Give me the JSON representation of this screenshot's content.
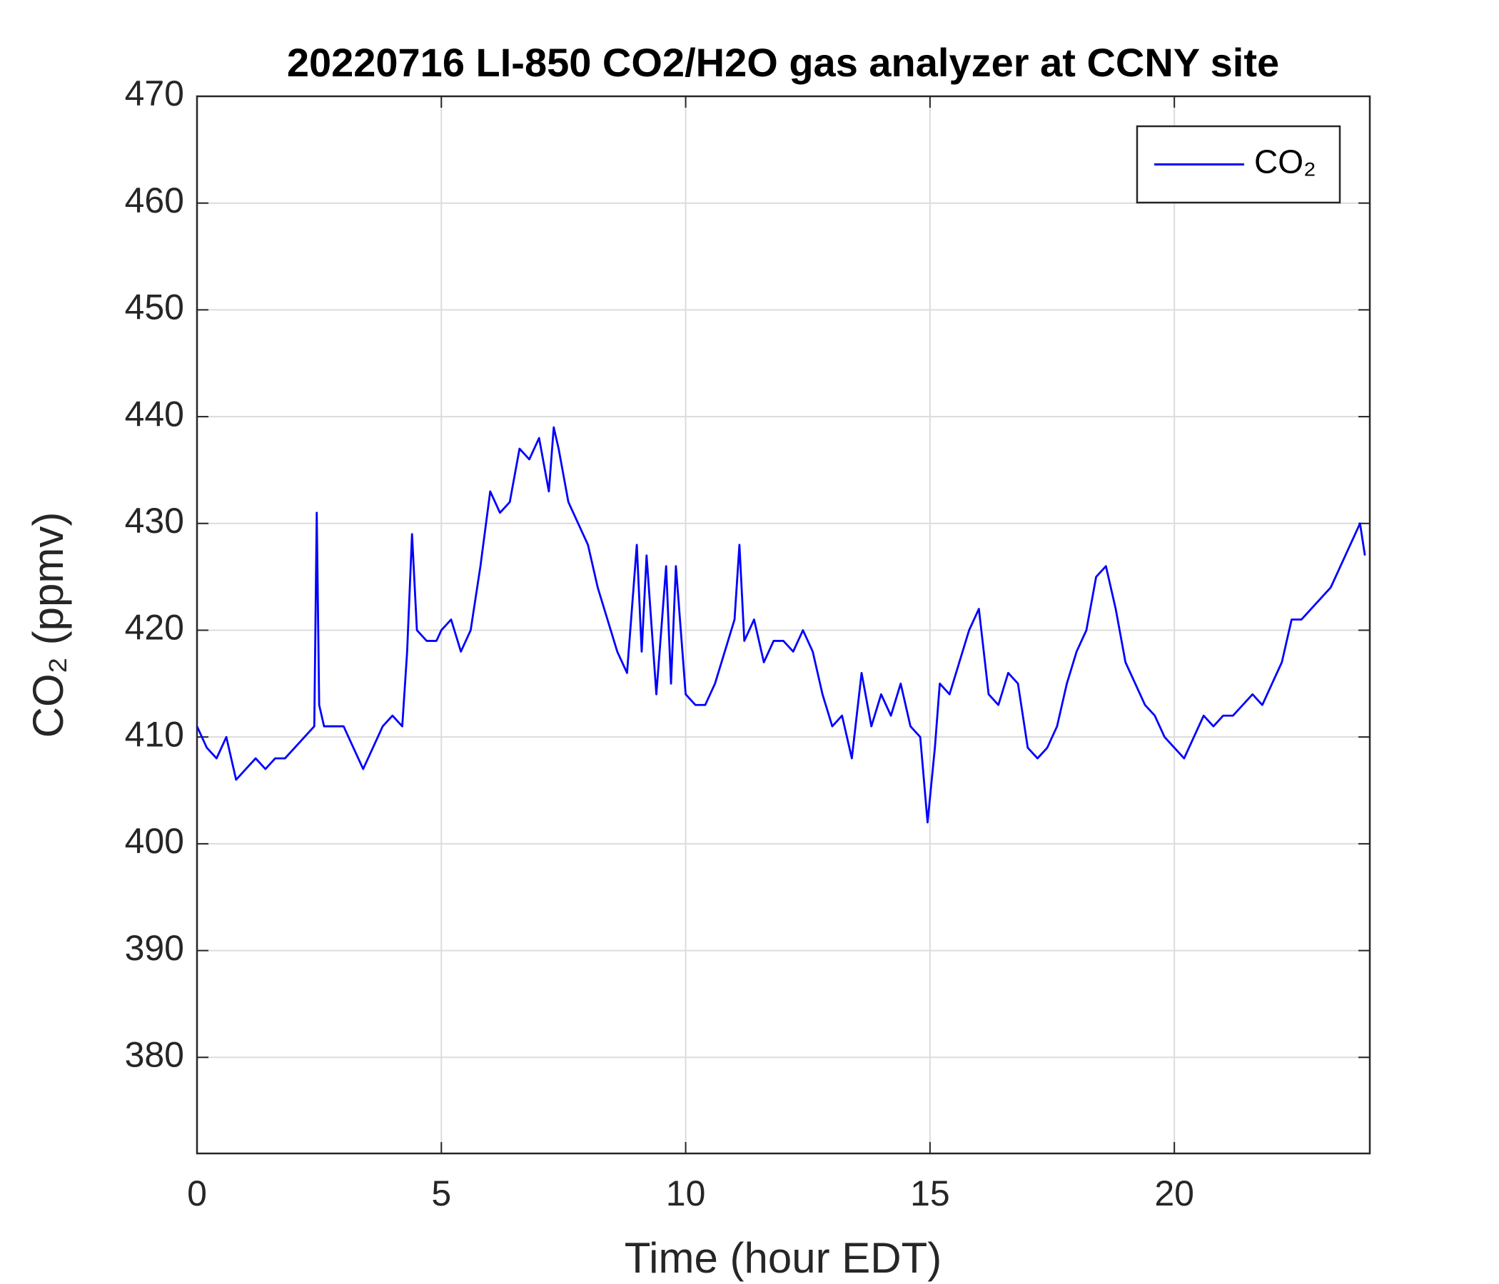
{
  "chart_data": {
    "type": "line",
    "title": "20220716 LI-850 CO2/H2O gas analyzer at CCNY site",
    "x_label": "Time (hour EDT)",
    "y_label": "CO₂ (ppmv)",
    "xlim": [
      0,
      24
    ],
    "xticks": [
      0,
      5,
      10,
      15,
      20
    ],
    "ylim": [
      371,
      470
    ],
    "yticks": [
      380,
      390,
      400,
      410,
      420,
      430,
      440,
      450,
      460,
      470
    ],
    "grid": true,
    "legend": "top-right",
    "x": [
      0,
      0.2,
      0.4,
      0.6,
      0.8,
      1.0,
      1.2,
      1.4,
      1.6,
      1.8,
      2.0,
      2.2,
      2.4,
      2.45,
      2.5,
      2.6,
      2.8,
      3.0,
      3.2,
      3.4,
      3.6,
      3.8,
      4.0,
      4.2,
      4.3,
      4.4,
      4.5,
      4.7,
      4.9,
      5.0,
      5.2,
      5.4,
      5.6,
      5.8,
      6.0,
      6.2,
      6.4,
      6.6,
      6.8,
      7.0,
      7.2,
      7.3,
      7.4,
      7.6,
      7.8,
      8.0,
      8.2,
      8.4,
      8.6,
      8.8,
      9.0,
      9.1,
      9.2,
      9.4,
      9.6,
      9.7,
      9.8,
      10.0,
      10.2,
      10.4,
      10.6,
      10.8,
      11.0,
      11.1,
      11.2,
      11.4,
      11.6,
      11.8,
      12.0,
      12.2,
      12.4,
      12.6,
      12.8,
      13.0,
      13.2,
      13.4,
      13.6,
      13.8,
      14.0,
      14.2,
      14.4,
      14.6,
      14.8,
      14.95,
      15.1,
      15.2,
      15.4,
      15.6,
      15.8,
      16.0,
      16.1,
      16.2,
      16.4,
      16.6,
      16.8,
      17.0,
      17.2,
      17.4,
      17.6,
      17.8,
      18.0,
      18.2,
      18.4,
      18.6,
      18.8,
      19.0,
      19.2,
      19.4,
      19.6,
      19.8,
      20.0,
      20.2,
      20.4,
      20.6,
      20.8,
      21.0,
      21.2,
      21.4,
      21.6,
      21.8,
      22.0,
      22.2,
      22.4,
      22.6,
      22.8,
      23.0,
      23.2,
      23.4,
      23.6,
      23.8,
      23.9
    ],
    "series": [
      {
        "name": "CO₂",
        "color": "#0000ff",
        "values": [
          411,
          409,
          408,
          410,
          406,
          407,
          408,
          407,
          408,
          408,
          409,
          410,
          411,
          431,
          413,
          411,
          411,
          411,
          409,
          407,
          409,
          411,
          412,
          411,
          418,
          429,
          420,
          419,
          419,
          420,
          421,
          418,
          420,
          426,
          433,
          431,
          432,
          437,
          436,
          438,
          433,
          439,
          437,
          432,
          430,
          428,
          424,
          421,
          418,
          416,
          428,
          418,
          427,
          414,
          426,
          415,
          426,
          414,
          413,
          413,
          415,
          418,
          421,
          428,
          419,
          421,
          417,
          419,
          419,
          418,
          420,
          418,
          414,
          411,
          412,
          408,
          416,
          411,
          414,
          412,
          415,
          411,
          410,
          402,
          409,
          415,
          414,
          417,
          420,
          422,
          418,
          414,
          413,
          416,
          415,
          409,
          408,
          409,
          411,
          415,
          418,
          420,
          425,
          426,
          422,
          417,
          415,
          413,
          412,
          410,
          409,
          408,
          410,
          412,
          411,
          412,
          412,
          413,
          414,
          413,
          415,
          417,
          421,
          421,
          422,
          423,
          424,
          426,
          428,
          430,
          427
        ]
      }
    ]
  }
}
